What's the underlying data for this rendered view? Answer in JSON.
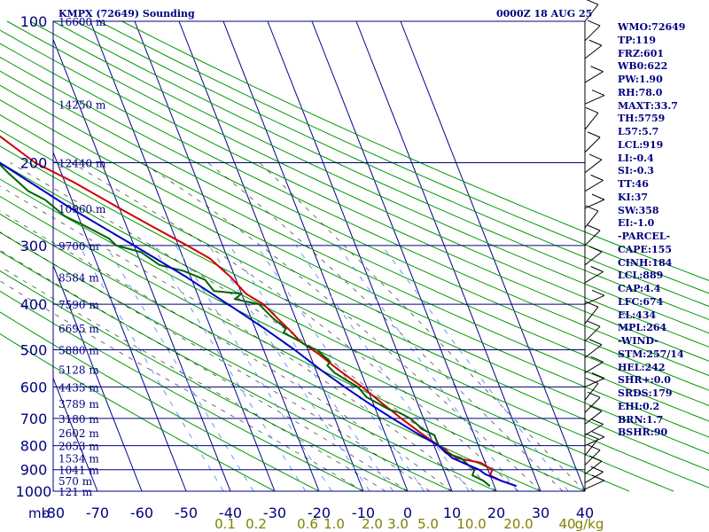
{
  "header": {
    "station": "KMPX (72649) Sounding",
    "time": "0000Z 18 AUG 25"
  },
  "colors": {
    "axes": "#000080",
    "isotherms": "#00008b",
    "dry_adiabats": "#009900",
    "moist_adiabats": "#000000",
    "mixing_ratio": "#3b82f6",
    "temperature": "#cc0000",
    "dewpoint": "#006400",
    "parcel": "#0000cc",
    "mixing_labels": "#808000"
  },
  "indices": [
    "WMO:72649",
    "TP:119",
    "FRZ:601",
    "WB0:622",
    "PW:1.90",
    "RH:78.0",
    "MAXT:33.7",
    "TH:5759",
    "L57:5.7",
    "LCL:919",
    "LI:-0.4",
    "SI:-0.3",
    "TT:46",
    "KI:37",
    "SW:358",
    "EI:-1.0",
    "-PARCEL-",
    "CAPE:155",
    "CINH:184",
    "LCL:889",
    "CAP:4.4",
    "LFC:674",
    "EL:434",
    "MPL:264",
    "-WIND-",
    "STM:257/14",
    "HEL:242",
    "SHR+:0.0",
    "SRDS:179",
    "EHI:0.2",
    "BRN:1.7",
    "BSHR:90"
  ],
  "chart_data": {
    "type": "line",
    "title": "KMPX (72649) Sounding",
    "xlabel": "",
    "ylabel": "mb",
    "xlim": [
      -80,
      40
    ],
    "ylim": [
      1000,
      100
    ],
    "y_scale": "log",
    "x_ticks": [
      -80,
      -70,
      -60,
      -50,
      -40,
      -30,
      -20,
      -10,
      0,
      10,
      20,
      30,
      40
    ],
    "x_tick_labels": [
      "-80",
      "-70",
      "-60",
      "-50",
      "-40",
      "-30",
      "-20",
      "-10",
      "0",
      "10",
      "20",
      "30",
      "40"
    ],
    "y_ticks": [
      100,
      200,
      300,
      400,
      500,
      600,
      700,
      800,
      900,
      1000
    ],
    "y_tick_labels": [
      "100",
      "200",
      "300",
      "400",
      "500",
      "600",
      "700",
      "800",
      "900",
      "1000"
    ],
    "height_labels": [
      {
        "p": 100,
        "label": "16600 m"
      },
      {
        "p": 150,
        "label": "14250 m"
      },
      {
        "p": 200,
        "label": "12440 m"
      },
      {
        "p": 250,
        "label": "10960 m"
      },
      {
        "p": 300,
        "label": "9700 m"
      },
      {
        "p": 350,
        "label": "8584 m"
      },
      {
        "p": 400,
        "label": "7590 m"
      },
      {
        "p": 450,
        "label": "6695 m"
      },
      {
        "p": 500,
        "label": "5880 m"
      },
      {
        "p": 550,
        "label": "5128 m"
      },
      {
        "p": 600,
        "label": "4435 m"
      },
      {
        "p": 650,
        "label": "3789 m"
      },
      {
        "p": 700,
        "label": "3180 m"
      },
      {
        "p": 750,
        "label": "2602 m"
      },
      {
        "p": 800,
        "label": "2053 m"
      },
      {
        "p": 850,
        "label": "1534 m"
      },
      {
        "p": 900,
        "label": "1041 m"
      },
      {
        "p": 950,
        "label": "570 m"
      },
      {
        "p": 1000,
        "label": "121 m"
      }
    ],
    "mixing_ratio_labels": [
      "0.1",
      "0.2",
      "0.6",
      "1.0",
      "2.0",
      "3.0",
      "5.0",
      "10.0",
      "20.0",
      "40",
      "g/kg"
    ],
    "series": [
      {
        "role": "temperature",
        "points": [
          [
            25,
            975
          ],
          [
            22,
            950
          ],
          [
            20,
            925
          ],
          [
            21,
            900
          ],
          [
            19,
            870
          ],
          [
            14,
            850
          ],
          [
            11,
            800
          ],
          [
            8,
            750
          ],
          [
            5,
            700
          ],
          [
            2,
            650
          ],
          [
            -1,
            600
          ],
          [
            -3,
            575
          ],
          [
            -5,
            550
          ],
          [
            -8,
            510
          ],
          [
            -11,
            480
          ],
          [
            -12,
            460
          ],
          [
            -14,
            430
          ],
          [
            -16,
            400
          ],
          [
            -19,
            380
          ],
          [
            -21,
            350
          ],
          [
            -24,
            320
          ],
          [
            -28,
            300
          ],
          [
            -35,
            270
          ],
          [
            -40,
            250
          ],
          [
            -48,
            220
          ],
          [
            -55,
            200
          ],
          [
            -62,
            170
          ],
          [
            -66,
            150
          ],
          [
            -71,
            130
          ],
          [
            -72,
            125
          ],
          [
            -64,
            100
          ]
        ]
      },
      {
        "role": "dewpoint",
        "points": [
          [
            19,
            975
          ],
          [
            18,
            950
          ],
          [
            16,
            925
          ],
          [
            17,
            900
          ],
          [
            16,
            880
          ],
          [
            15,
            850
          ],
          [
            12,
            830
          ],
          [
            11,
            800
          ],
          [
            11,
            760
          ],
          [
            9,
            740
          ],
          [
            7,
            700
          ],
          [
            5,
            680
          ],
          [
            3,
            670
          ],
          [
            1,
            650
          ],
          [
            -1,
            630
          ],
          [
            -2,
            600
          ],
          [
            -4,
            580
          ],
          [
            -6,
            560
          ],
          [
            -7,
            540
          ],
          [
            -6,
            530
          ],
          [
            -8,
            500
          ],
          [
            -10,
            490
          ],
          [
            -11,
            480
          ],
          [
            -14,
            460
          ],
          [
            -13,
            450
          ],
          [
            -15,
            430
          ],
          [
            -17,
            400
          ],
          [
            -22,
            390
          ],
          [
            -20,
            380
          ],
          [
            -26,
            375
          ],
          [
            -27,
            355
          ],
          [
            -31,
            340
          ],
          [
            -36,
            330
          ],
          [
            -39,
            310
          ],
          [
            -44,
            300
          ],
          [
            -45,
            290
          ],
          [
            -50,
            270
          ],
          [
            -53,
            260
          ],
          [
            -56,
            240
          ],
          [
            -59,
            230
          ],
          [
            -62,
            210
          ],
          [
            -64,
            195
          ],
          [
            -66,
            180
          ],
          [
            -70,
            160
          ],
          [
            -77,
            140
          ],
          [
            -76,
            125
          ]
        ]
      },
      {
        "role": "parcel",
        "points": [
          [
            25,
            975
          ],
          [
            22,
            950
          ],
          [
            19,
            920
          ],
          [
            18,
            900
          ],
          [
            16,
            880
          ],
          [
            13,
            850
          ],
          [
            11,
            800
          ],
          [
            7,
            750
          ],
          [
            3,
            700
          ],
          [
            -1,
            650
          ],
          [
            -5,
            600
          ],
          [
            -9,
            550
          ],
          [
            -13,
            500
          ],
          [
            -18,
            450
          ],
          [
            -24,
            400
          ],
          [
            -31,
            350
          ],
          [
            -40,
            300
          ],
          [
            -51,
            250
          ],
          [
            -63,
            200
          ],
          [
            -76,
            150
          ],
          [
            -88,
            120
          ]
        ]
      }
    ]
  }
}
